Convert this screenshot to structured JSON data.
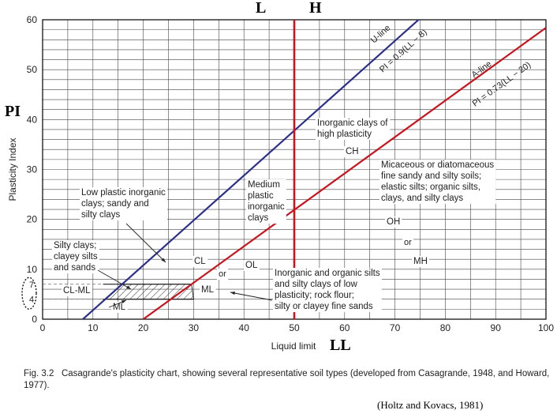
{
  "chart_data": {
    "type": "line",
    "title": "Casagrande's plasticity chart",
    "xlabel": "Liquid limit",
    "ylabel": "Plasticity Index",
    "xlim": [
      0,
      100
    ],
    "ylim": [
      0,
      60
    ],
    "x_ticks": [
      "0",
      "10",
      "20",
      "30",
      "40",
      "50",
      "60",
      "70",
      "80",
      "90",
      "100"
    ],
    "y_ticks": [
      "0",
      "10",
      "20",
      "30",
      "40",
      "50",
      "60"
    ],
    "series": [
      {
        "name": "U-line",
        "equation": "PI = 0.9(LL − 8)",
        "color": "#2b2f8c",
        "points": [
          [
            8,
            0
          ],
          [
            75.8,
            61
          ]
        ]
      },
      {
        "name": "A-line",
        "equation": "PI = 0.73(LL − 20)",
        "color": "#c8141c",
        "points": [
          [
            20,
            0
          ],
          [
            100,
            58.4
          ]
        ]
      },
      {
        "name": "LL = 50",
        "color": "#c8141c",
        "points": [
          [
            50,
            0
          ],
          [
            50,
            60
          ]
        ]
      }
    ],
    "hatched_zone": {
      "label": "CL-ML",
      "pi_range": [
        4,
        7
      ],
      "ll_range": [
        12,
        30
      ]
    },
    "region_labels": {
      "inorganic_high": "Inorganic clays of\nhigh plasticity",
      "ch": "CH",
      "micaceous": "Micaceous or diatomaceous\nfine sandy and silty soils;\nelastic silts; organic silts,\nclays, and silty clays",
      "oh": "OH",
      "or1": "or",
      "mh": "MH",
      "medium": "Medium\nplastic\ninorganic\nclays",
      "low_plastic": "Low plastic inorganic\nclays; sandy and\nsilty clays",
      "silty_clays": "Silty clays;\nclayey silts\nand sands",
      "cl": "CL",
      "or2": "or",
      "ol": "OL",
      "ml_mid": "ML",
      "clml": "CL-ML",
      "ml_low": "ML",
      "inorganic_organic": "Inorganic and organic silts\nand silty clays of low\nplasticity; rock flour;\nsilty or clayey fine sands"
    },
    "marked_values": [
      "7",
      "4"
    ]
  },
  "header": {
    "L": "L",
    "H": "H",
    "PI": "PI",
    "LL": "LL"
  },
  "caption": {
    "fig": "Fig. 3.2",
    "text": "Casagrande's plasticity chart, showing several representative soil types (developed from Casagrande, 1948, and Howard, 1977)."
  },
  "source": "(Holtz and Kovacs, 1981)"
}
